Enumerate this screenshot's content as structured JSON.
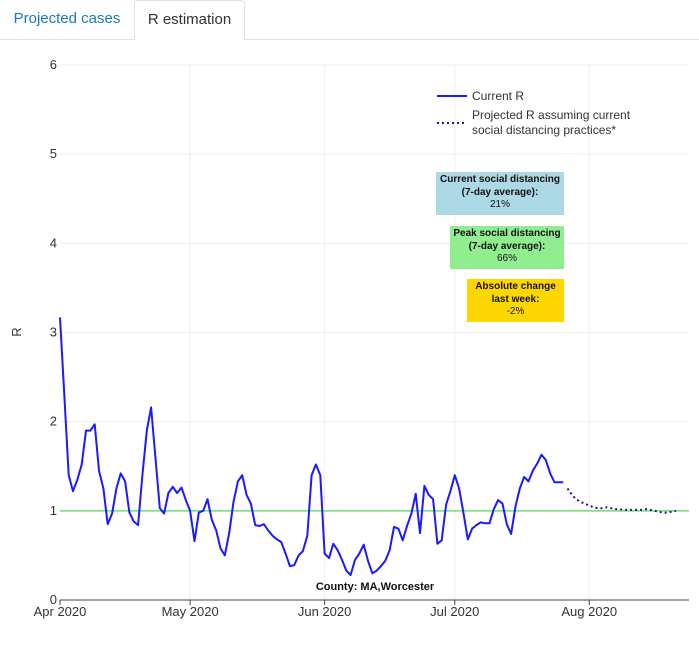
{
  "tabs": [
    {
      "label": "Projected cases",
      "active": false
    },
    {
      "label": "R estimation",
      "active": true
    }
  ],
  "chart_data": {
    "type": "line",
    "ylabel": "R",
    "ylim": [
      0,
      6
    ],
    "yticks": [
      "0",
      "1",
      "2",
      "3",
      "4",
      "5",
      "6"
    ],
    "x_start": "2020-04-01",
    "x_end": "2020-08-24",
    "xticks": [
      {
        "date": "2020-04-01",
        "label": "Apr 2020"
      },
      {
        "date": "2020-05-01",
        "label": "May 2020"
      },
      {
        "date": "2020-06-01",
        "label": "Jun 2020"
      },
      {
        "date": "2020-07-01",
        "label": "Jul 2020"
      },
      {
        "date": "2020-08-01",
        "label": "Aug 2020"
      }
    ],
    "reference_line": {
      "y": 1,
      "color": "#6ee06e"
    },
    "series": [
      {
        "name": "Current R",
        "style": "solid",
        "color": "#1a1aff",
        "start": "2020-04-01",
        "values": [
          3.17,
          2.3,
          1.4,
          1.22,
          1.35,
          1.52,
          1.9,
          1.9,
          1.97,
          1.45,
          1.25,
          0.85,
          0.97,
          1.25,
          1.42,
          1.33,
          0.98,
          0.88,
          0.84,
          1.4,
          1.9,
          2.16,
          1.6,
          1.03,
          0.97,
          1.2,
          1.27,
          1.2,
          1.26,
          1.12,
          1.0,
          0.66,
          0.98,
          1.0,
          1.13,
          0.9,
          0.78,
          0.58,
          0.5,
          0.75,
          1.1,
          1.33,
          1.4,
          1.18,
          1.08,
          0.84,
          0.83,
          0.85,
          0.78,
          0.72,
          0.68,
          0.65,
          0.52,
          0.38,
          0.39,
          0.5,
          0.55,
          0.72,
          1.4,
          1.52,
          1.4,
          0.52,
          0.47,
          0.63,
          0.56,
          0.45,
          0.33,
          0.28,
          0.45,
          0.52,
          0.62,
          0.44,
          0.3,
          0.33,
          0.38,
          0.44,
          0.56,
          0.82,
          0.8,
          0.67,
          0.83,
          0.97,
          1.19,
          0.75,
          1.28,
          1.18,
          1.13,
          0.63,
          0.67,
          1.07,
          1.22,
          1.4,
          1.25,
          0.98,
          0.68,
          0.8,
          0.84,
          0.87,
          0.86,
          0.86,
          1.02,
          1.12,
          1.08,
          0.85,
          0.74,
          1.05,
          1.25,
          1.38,
          1.33,
          1.45,
          1.53,
          1.63,
          1.57,
          1.42,
          1.32,
          1.32,
          1.32
        ]
      },
      {
        "name": "Projected R assuming current social distancing practices*",
        "style": "dotted",
        "color": "#1a1a80",
        "color_near_one": "#2a7a2a",
        "start": "2020-07-27",
        "values": [
          1.25,
          1.18,
          1.13,
          1.1,
          1.08,
          1.06,
          1.04,
          1.03,
          1.03,
          1.04,
          1.03,
          1.02,
          1.02,
          1.01,
          1.01,
          1.01,
          1.01,
          1.01,
          1.02,
          1.01,
          1.0,
          0.99,
          0.98,
          0.98,
          0.99,
          1.0
        ]
      }
    ],
    "annotations": [
      {
        "title": "Current social distancing (7-day average):",
        "value": "21%",
        "bg": "#add8e6"
      },
      {
        "title": "Peak social distancing (7-day average):",
        "value": "66%",
        "bg": "#90ee90"
      },
      {
        "title": "Absolute change last week:",
        "value": "-2%",
        "bg": "#ffd700"
      }
    ],
    "footer_label": "County: MA,Worcester"
  }
}
